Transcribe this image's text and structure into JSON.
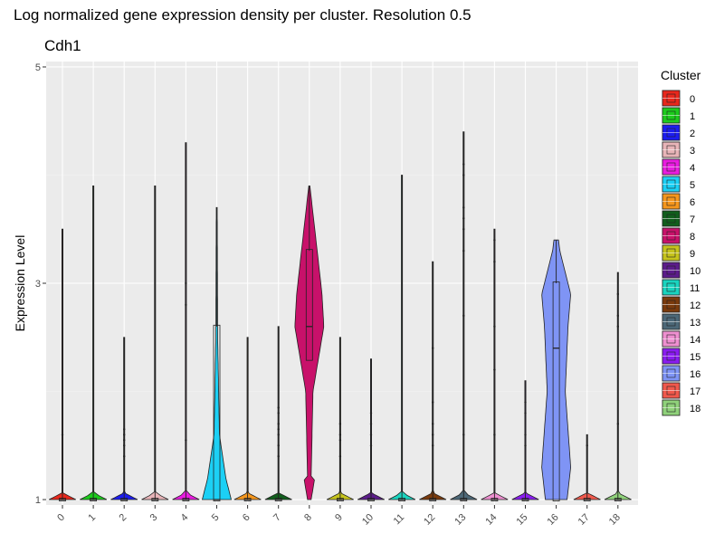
{
  "chart_data": {
    "type": "violin",
    "title": "Log normalized gene expression density per cluster. Resolution 0.5",
    "subtitle": "Cdh1",
    "xlabel": "",
    "ylabel": "Expression Level",
    "y_ticks": [
      1,
      3,
      5
    ],
    "ylim": [
      0.95,
      5.05
    ],
    "grid": true,
    "legend": {
      "title": "Cluster",
      "position": "right"
    },
    "categories": [
      "0",
      "1",
      "2",
      "3",
      "4",
      "5",
      "6",
      "7",
      "8",
      "9",
      "10",
      "11",
      "12",
      "13",
      "14",
      "15",
      "16",
      "17",
      "18"
    ],
    "colors": [
      "#e8271c",
      "#1ccb1c",
      "#1c1cf0",
      "#e8b4b8",
      "#e91ce0",
      "#1cd0f5",
      "#f5961c",
      "#115e1c",
      "#c8116a",
      "#c5c31c",
      "#5b1c8a",
      "#19d4bf",
      "#7a3a0c",
      "#4c6878",
      "#ee8fd0",
      "#8a1cf0",
      "#7f94f5",
      "#f0584c",
      "#8fd17a"
    ],
    "series": [
      {
        "cluster": "0",
        "max": 3.5,
        "median": 1.0,
        "q1": 1.0,
        "q3": 1.0,
        "outliers": [
          1.6
        ]
      },
      {
        "cluster": "1",
        "max": 3.9,
        "median": 1.0,
        "q1": 1.0,
        "q3": 1.0,
        "outliers": []
      },
      {
        "cluster": "2",
        "max": 2.5,
        "median": 1.0,
        "q1": 1.0,
        "q3": 1.0,
        "outliers": [
          1.4,
          1.5,
          1.55,
          1.6,
          1.65
        ]
      },
      {
        "cluster": "3",
        "max": 3.9,
        "median": 1.0,
        "q1": 1.0,
        "q3": 1.0,
        "outliers": []
      },
      {
        "cluster": "4",
        "max": 4.3,
        "median": 1.0,
        "q1": 1.0,
        "q3": 1.0,
        "outliers": [
          1.55,
          2.8,
          3.0
        ]
      },
      {
        "cluster": "5",
        "max": 3.7,
        "median": 1.0,
        "q1": 1.0,
        "q3": 2.6,
        "outliers": []
      },
      {
        "cluster": "6",
        "max": 2.5,
        "median": 1.0,
        "q1": 1.0,
        "q3": 1.0,
        "outliers": []
      },
      {
        "cluster": "7",
        "max": 2.6,
        "median": 1.0,
        "q1": 1.0,
        "q3": 1.0,
        "outliers": [
          1.4,
          1.5,
          1.6,
          1.65,
          1.7,
          1.8,
          1.85
        ]
      },
      {
        "cluster": "8",
        "max": 3.9,
        "median": 2.6,
        "q1": 2.3,
        "q3": 3.3,
        "outliers": []
      },
      {
        "cluster": "9",
        "max": 2.5,
        "median": 1.0,
        "q1": 1.0,
        "q3": 1.0,
        "outliers": [
          1.4,
          1.55,
          1.6,
          1.7
        ]
      },
      {
        "cluster": "10",
        "max": 2.3,
        "median": 1.0,
        "q1": 1.0,
        "q3": 1.0,
        "outliers": [
          1.5,
          1.6,
          1.7,
          1.8
        ]
      },
      {
        "cluster": "11",
        "max": 4.0,
        "median": 1.0,
        "q1": 1.0,
        "q3": 1.0,
        "outliers": []
      },
      {
        "cluster": "12",
        "max": 3.2,
        "median": 1.0,
        "q1": 1.0,
        "q3": 1.0,
        "outliers": [
          1.5,
          1.6,
          1.7,
          1.9,
          2.4
        ]
      },
      {
        "cluster": "13",
        "max": 4.4,
        "median": 1.0,
        "q1": 1.0,
        "q3": 1.0,
        "outliers": [
          1.6,
          2.7,
          3.3,
          3.5,
          3.6,
          3.7,
          4.0,
          4.1
        ]
      },
      {
        "cluster": "14",
        "max": 3.5,
        "median": 1.0,
        "q1": 1.0,
        "q3": 1.0,
        "outliers": [
          1.6,
          2.2,
          2.6,
          3.2,
          3.4
        ]
      },
      {
        "cluster": "15",
        "max": 2.1,
        "median": 1.0,
        "q1": 1.0,
        "q3": 1.0,
        "outliers": [
          1.5,
          1.6,
          1.8,
          1.9
        ]
      },
      {
        "cluster": "16",
        "max": 3.4,
        "median": 2.4,
        "q1": 1.0,
        "q3": 3.0,
        "outliers": []
      },
      {
        "cluster": "17",
        "max": 1.6,
        "median": 1.0,
        "q1": 1.0,
        "q3": 1.0,
        "outliers": [
          1.5
        ]
      },
      {
        "cluster": "18",
        "max": 3.1,
        "median": 1.0,
        "q1": 1.0,
        "q3": 1.0,
        "outliers": [
          1.7,
          2.6,
          2.7,
          2.9
        ]
      }
    ]
  }
}
